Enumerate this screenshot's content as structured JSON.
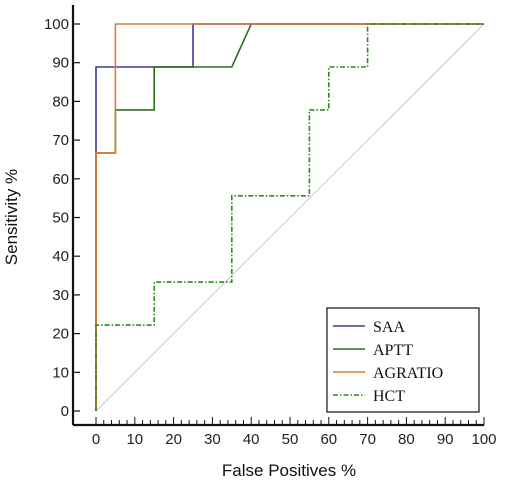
{
  "chart_data": {
    "type": "line",
    "xlabel": "False Positives %",
    "ylabel": "Sensitivity %",
    "xlim": [
      0,
      100
    ],
    "ylim": [
      0,
      100
    ],
    "x_ticks": [
      0,
      10,
      20,
      30,
      40,
      50,
      60,
      70,
      80,
      90,
      100
    ],
    "y_ticks": [
      0,
      10,
      20,
      30,
      40,
      50,
      60,
      70,
      80,
      90,
      100
    ],
    "grid": false,
    "legend_position": "bottom-right",
    "reference_line": {
      "from": [
        0,
        0
      ],
      "to": [
        100,
        100
      ],
      "color": "#c8c8c8"
    },
    "series": [
      {
        "name": "SAA",
        "color": "#3b3b9a",
        "style": "solid",
        "points": [
          [
            0,
            0
          ],
          [
            0,
            88.9
          ],
          [
            25,
            88.9
          ],
          [
            25,
            100
          ],
          [
            100,
            100
          ]
        ]
      },
      {
        "name": "APTT",
        "color": "#2e6b1f",
        "style": "solid",
        "points": [
          [
            0,
            0
          ],
          [
            0,
            66.7
          ],
          [
            5,
            66.7
          ],
          [
            5,
            77.8
          ],
          [
            15,
            77.8
          ],
          [
            15,
            88.9
          ],
          [
            35,
            88.9
          ],
          [
            40,
            100
          ],
          [
            100,
            100
          ]
        ]
      },
      {
        "name": "AGRATIO",
        "color": "#e07a34",
        "style": "solid",
        "points": [
          [
            0,
            0
          ],
          [
            0,
            66.7
          ],
          [
            5,
            66.7
          ],
          [
            5,
            100
          ],
          [
            100,
            100
          ]
        ]
      },
      {
        "name": "HCT",
        "color": "#2f8a1e",
        "style": "dashdot",
        "points": [
          [
            0,
            0
          ],
          [
            0,
            22.2
          ],
          [
            15,
            22.2
          ],
          [
            15,
            33.3
          ],
          [
            35,
            33.3
          ],
          [
            35,
            55.6
          ],
          [
            55,
            55.6
          ],
          [
            55,
            77.8
          ],
          [
            60,
            77.8
          ],
          [
            60,
            88.9
          ],
          [
            70,
            88.9
          ],
          [
            70,
            100
          ],
          [
            100,
            100
          ]
        ]
      }
    ]
  }
}
